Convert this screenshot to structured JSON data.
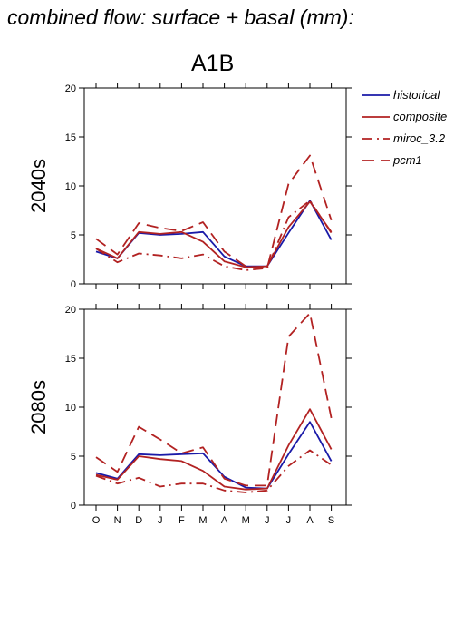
{
  "header": {
    "title": "combined flow: surface + basal (mm):",
    "scenario": "A1B"
  },
  "chart_data": [
    {
      "type": "line",
      "ylabel": "2040s",
      "categories": [
        "O",
        "N",
        "D",
        "J",
        "F",
        "M",
        "A",
        "M",
        "J",
        "J",
        "A",
        "S"
      ],
      "ylim": [
        0,
        20
      ],
      "yticks": [
        0,
        5,
        10,
        15,
        20
      ],
      "series": [
        {
          "name": "historical",
          "color": "#1a1aa8",
          "dash": "solid",
          "values": [
            3.3,
            2.6,
            5.2,
            5.0,
            5.1,
            5.3,
            2.8,
            1.8,
            1.8,
            5.2,
            8.5,
            4.5
          ]
        },
        {
          "name": "composite",
          "color": "#b22222",
          "dash": "solid",
          "values": [
            3.6,
            2.6,
            5.3,
            5.1,
            5.3,
            4.3,
            2.3,
            1.7,
            1.8,
            5.8,
            8.4,
            5.3
          ]
        },
        {
          "name": "miroc_3.2",
          "color": "#b22222",
          "dash": "dashdot",
          "values": [
            3.6,
            2.2,
            3.1,
            2.9,
            2.6,
            3.0,
            1.8,
            1.4,
            1.6,
            6.8,
            8.5,
            5.2
          ]
        },
        {
          "name": "pcm1",
          "color": "#b22222",
          "dash": "dash",
          "values": [
            4.6,
            3.0,
            6.2,
            5.7,
            5.4,
            6.3,
            3.3,
            1.8,
            1.6,
            10.2,
            13.1,
            6.5
          ]
        }
      ]
    },
    {
      "type": "line",
      "ylabel": "2080s",
      "categories": [
        "O",
        "N",
        "D",
        "J",
        "F",
        "M",
        "A",
        "M",
        "J",
        "J",
        "A",
        "S"
      ],
      "ylim": [
        0,
        20
      ],
      "yticks": [
        0,
        5,
        10,
        15,
        20
      ],
      "series": [
        {
          "name": "historical",
          "color": "#1a1aa8",
          "dash": "solid",
          "values": [
            3.3,
            2.7,
            5.2,
            5.1,
            5.2,
            5.3,
            2.9,
            1.8,
            1.7,
            5.2,
            8.5,
            4.5
          ]
        },
        {
          "name": "composite",
          "color": "#b22222",
          "dash": "solid",
          "values": [
            3.1,
            2.6,
            5.0,
            4.7,
            4.5,
            3.5,
            1.9,
            1.6,
            1.7,
            6.1,
            9.8,
            5.7
          ]
        },
        {
          "name": "miroc_3.2",
          "color": "#b22222",
          "dash": "dashdot",
          "values": [
            3.0,
            2.2,
            2.8,
            1.9,
            2.2,
            2.2,
            1.5,
            1.3,
            1.5,
            4.0,
            5.6,
            4.1
          ]
        },
        {
          "name": "pcm1",
          "color": "#b22222",
          "dash": "dash",
          "values": [
            4.9,
            3.4,
            8.0,
            6.7,
            5.3,
            5.9,
            2.7,
            2.0,
            2.0,
            17.2,
            19.6,
            8.9
          ]
        }
      ]
    }
  ],
  "legend": [
    {
      "label": "historical",
      "color": "#1a1aa8",
      "dash": "solid"
    },
    {
      "label": "composite",
      "color": "#b22222",
      "dash": "solid"
    },
    {
      "label": "miroc_3.2",
      "color": "#b22222",
      "dash": "dashdot"
    },
    {
      "label": "pcm1",
      "color": "#b22222",
      "dash": "dash"
    }
  ]
}
